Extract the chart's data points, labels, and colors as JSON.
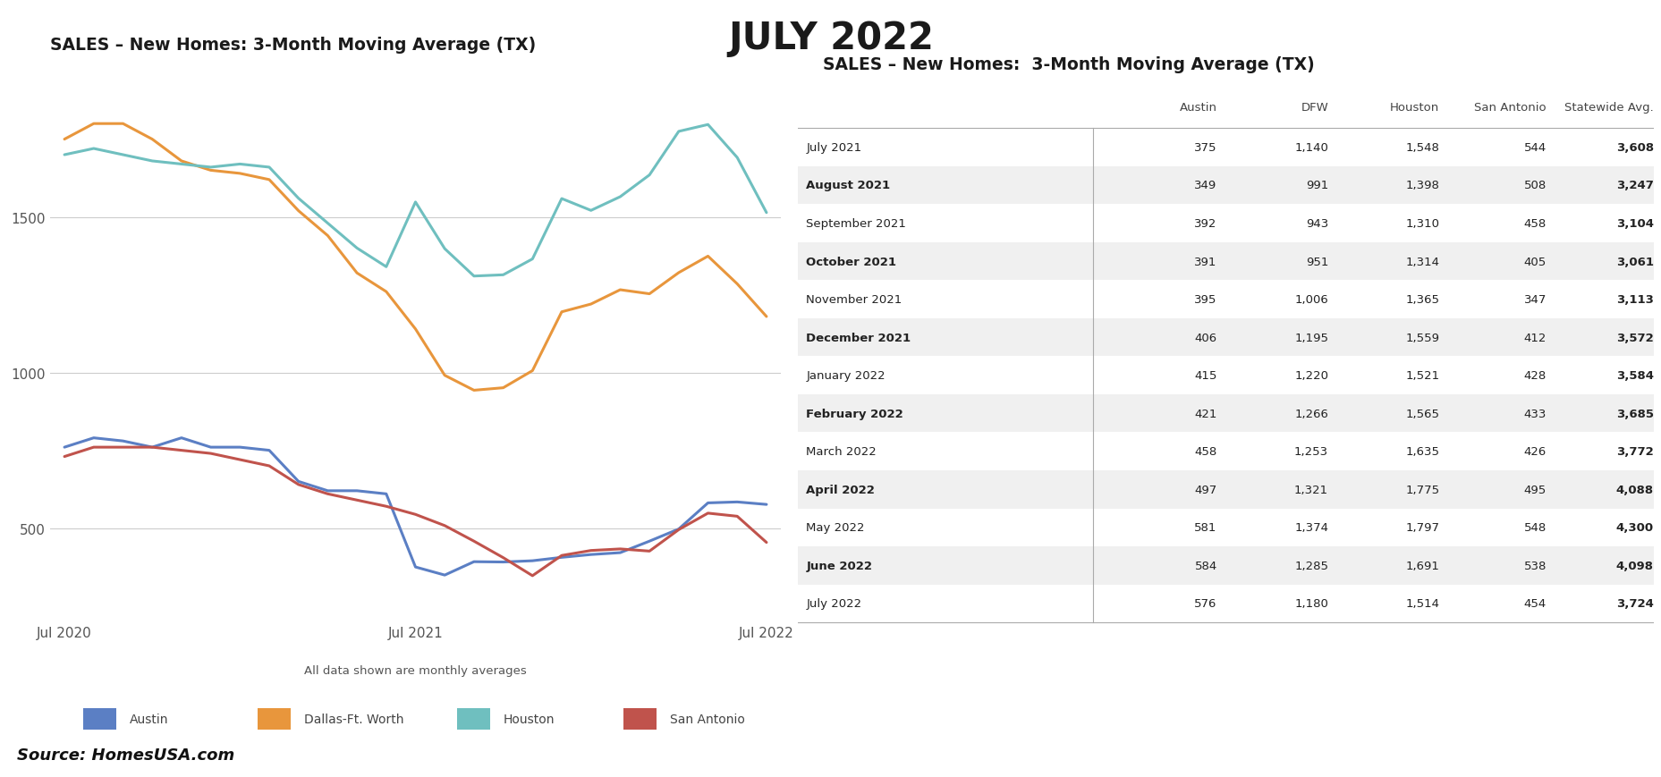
{
  "title": "JULY 2022",
  "chart_title": "SALES – New Homes: 3-Month Moving Average (TX)",
  "table_title": "SALES – New Homes:  3-Month Moving Average (TX)",
  "subtitle": "All data shown are monthly averages",
  "source": "Source: HomesUSA.com",
  "x_labels": [
    "Jul 2020",
    "Jul 2021",
    "Jul 2022"
  ],
  "series": {
    "Austin": {
      "color": "#5B7FC4",
      "values": [
        760,
        790,
        780,
        760,
        790,
        760,
        760,
        750,
        650,
        620,
        620,
        610,
        375,
        349,
        392,
        391,
        395,
        406,
        415,
        421,
        458,
        497,
        581,
        584,
        576
      ]
    },
    "Dallas-Ft. Worth": {
      "color": "#E8963C",
      "values": [
        1750,
        1800,
        1800,
        1750,
        1680,
        1650,
        1640,
        1620,
        1520,
        1440,
        1320,
        1260,
        1140,
        991,
        943,
        951,
        1006,
        1195,
        1220,
        1266,
        1253,
        1321,
        1374,
        1285,
        1180
      ]
    },
    "Houston": {
      "color": "#6FBFBF",
      "values": [
        1700,
        1720,
        1700,
        1680,
        1670,
        1660,
        1670,
        1660,
        1560,
        1480,
        1400,
        1340,
        1548,
        1398,
        1310,
        1314,
        1365,
        1559,
        1521,
        1565,
        1635,
        1775,
        1797,
        1691,
        1514
      ]
    },
    "San Antonio": {
      "color": "#C0534C",
      "values": [
        730,
        760,
        760,
        760,
        750,
        740,
        720,
        700,
        640,
        610,
        590,
        570,
        544,
        508,
        458,
        405,
        347,
        412,
        428,
        433,
        426,
        495,
        548,
        538,
        454
      ]
    }
  },
  "x_tick_indices": [
    0,
    12,
    24
  ],
  "yticks": [
    500,
    1000,
    1500
  ],
  "ylim": [
    200,
    2000
  ],
  "table_rows": [
    {
      "month": "July 2021",
      "austin": "375",
      "dfw": "1,140",
      "houston": "1,548",
      "san_antonio": "544",
      "statewide": "3,608",
      "bold": false
    },
    {
      "month": "August 2021",
      "austin": "349",
      "dfw": "991",
      "houston": "1,398",
      "san_antonio": "508",
      "statewide": "3,247",
      "bold": true
    },
    {
      "month": "September 2021",
      "austin": "392",
      "dfw": "943",
      "houston": "1,310",
      "san_antonio": "458",
      "statewide": "3,104",
      "bold": false
    },
    {
      "month": "October 2021",
      "austin": "391",
      "dfw": "951",
      "houston": "1,314",
      "san_antonio": "405",
      "statewide": "3,061",
      "bold": true
    },
    {
      "month": "November 2021",
      "austin": "395",
      "dfw": "1,006",
      "houston": "1,365",
      "san_antonio": "347",
      "statewide": "3,113",
      "bold": false
    },
    {
      "month": "December 2021",
      "austin": "406",
      "dfw": "1,195",
      "houston": "1,559",
      "san_antonio": "412",
      "statewide": "3,572",
      "bold": true
    },
    {
      "month": "January 2022",
      "austin": "415",
      "dfw": "1,220",
      "houston": "1,521",
      "san_antonio": "428",
      "statewide": "3,584",
      "bold": false
    },
    {
      "month": "February 2022",
      "austin": "421",
      "dfw": "1,266",
      "houston": "1,565",
      "san_antonio": "433",
      "statewide": "3,685",
      "bold": true
    },
    {
      "month": "March 2022",
      "austin": "458",
      "dfw": "1,253",
      "houston": "1,635",
      "san_antonio": "426",
      "statewide": "3,772",
      "bold": false
    },
    {
      "month": "April 2022",
      "austin": "497",
      "dfw": "1,321",
      "houston": "1,775",
      "san_antonio": "495",
      "statewide": "4,088",
      "bold": true
    },
    {
      "month": "May 2022",
      "austin": "581",
      "dfw": "1,374",
      "houston": "1,797",
      "san_antonio": "548",
      "statewide": "4,300",
      "bold": false
    },
    {
      "month": "June 2022",
      "austin": "584",
      "dfw": "1,285",
      "houston": "1,691",
      "san_antonio": "538",
      "statewide": "4,098",
      "bold": true
    },
    {
      "month": "July 2022",
      "austin": "576",
      "dfw": "1,180",
      "houston": "1,514",
      "san_antonio": "454",
      "statewide": "3,724",
      "bold": false
    }
  ],
  "background_color": "#ffffff",
  "row_colors": [
    "#ffffff",
    "#f0f0f0"
  ]
}
